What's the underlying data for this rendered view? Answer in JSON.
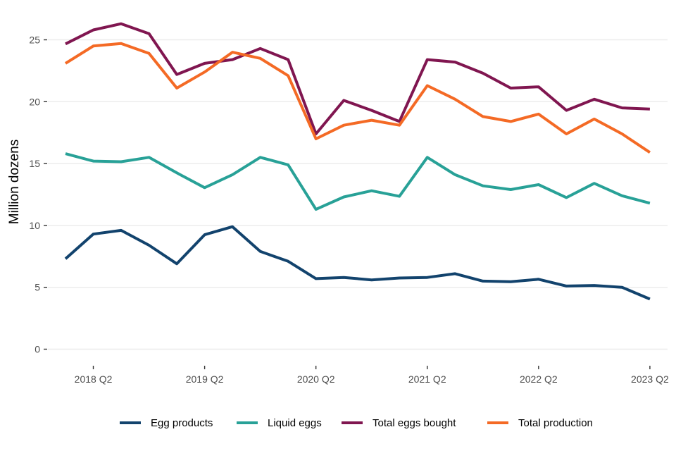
{
  "chart_data": {
    "type": "line",
    "title": "",
    "xlabel": "",
    "ylabel": "Million dozens",
    "ylim": [
      0,
      27
    ],
    "yticks": [
      0,
      5,
      10,
      15,
      20,
      25
    ],
    "grid": true,
    "legend_position": "bottom",
    "x": [
      "2018 Q1",
      "2018 Q2",
      "2018 Q3",
      "2018 Q4",
      "2019 Q1",
      "2019 Q2",
      "2019 Q3",
      "2019 Q4",
      "2020 Q1",
      "2020 Q2",
      "2020 Q3",
      "2020 Q4",
      "2021 Q1",
      "2021 Q2",
      "2021 Q3",
      "2021 Q4",
      "2022 Q1",
      "2022 Q2",
      "2022 Q3",
      "2022 Q4",
      "2023 Q1",
      "2023 Q2"
    ],
    "xtick_labels": [
      "2018 Q2",
      "2019 Q2",
      "2020 Q2",
      "2021 Q2",
      "2022 Q2",
      "2023 Q2"
    ],
    "series": [
      {
        "name": "Egg products",
        "color": "#12436D",
        "values": [
          7.3,
          9.3,
          9.6,
          8.4,
          6.9,
          9.25,
          9.9,
          7.9,
          7.1,
          5.7,
          5.8,
          5.6,
          5.75,
          5.8,
          6.1,
          5.5,
          5.45,
          5.65,
          5.1,
          5.15,
          5.0,
          4.05
        ]
      },
      {
        "name": "Liquid eggs",
        "color": "#28A197",
        "values": [
          15.8,
          15.2,
          15.15,
          15.5,
          14.25,
          13.05,
          14.1,
          15.5,
          14.9,
          11.3,
          12.3,
          12.8,
          12.35,
          15.5,
          14.1,
          13.2,
          12.9,
          13.3,
          12.25,
          13.4,
          12.4,
          11.8
        ]
      },
      {
        "name": "Total eggs bought",
        "color": "#801650",
        "values": [
          24.67,
          25.8,
          26.3,
          25.5,
          22.2,
          23.1,
          23.4,
          24.3,
          23.4,
          17.4,
          20.1,
          19.3,
          18.4,
          23.4,
          23.2,
          22.3,
          21.1,
          21.2,
          19.3,
          20.2,
          19.5,
          19.4
        ]
      },
      {
        "name": "Total production",
        "color": "#F46A25",
        "values": [
          23.1,
          24.5,
          24.7,
          23.9,
          21.1,
          22.4,
          24.0,
          23.5,
          22.1,
          17.0,
          18.1,
          18.5,
          18.1,
          21.3,
          20.2,
          18.8,
          18.4,
          19.0,
          17.4,
          18.6,
          17.4,
          15.9
        ]
      }
    ]
  }
}
